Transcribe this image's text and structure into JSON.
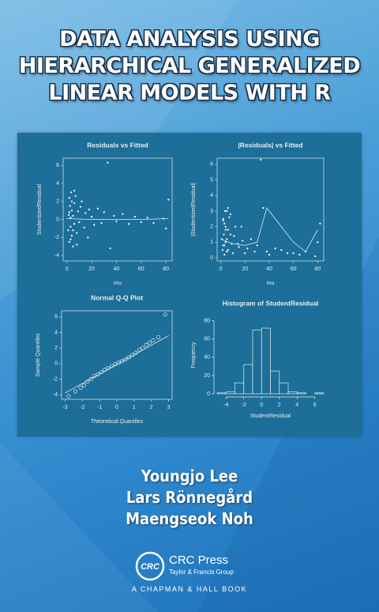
{
  "title_lines": [
    "DATA ANALYSIS USING",
    "HIERARCHICAL GENERALIZED",
    "LINEAR MODELS WITH R"
  ],
  "chart_data": [
    {
      "type": "scatter",
      "title": "Residuals vs Fitted",
      "x_label": "mu",
      "y_label": "StudentizedResidual",
      "marker": "dot",
      "color": "#e6eef4",
      "line_color": "#c9dbe6",
      "xlim": [
        -3,
        85
      ],
      "xticks": [
        0,
        20,
        40,
        60,
        80
      ],
      "ylim": [
        -4.6,
        6.8
      ],
      "yticks": [
        -4,
        -2,
        0,
        2,
        4,
        6
      ],
      "x": [
        1,
        1.5,
        2,
        2,
        2.5,
        3,
        3,
        3.5,
        4,
        4,
        5,
        5,
        6,
        6,
        7,
        8,
        9,
        10,
        11,
        12,
        14,
        15,
        17,
        18,
        20,
        22,
        25,
        28,
        30,
        33,
        35,
        38,
        40,
        45,
        50,
        55,
        60,
        65,
        70,
        78,
        80,
        82,
        3,
        4,
        5,
        2,
        6,
        8
      ],
      "y": [
        -1.2,
        0.5,
        2.4,
        -2.5,
        1.5,
        -0.8,
        0.2,
        3,
        -1.8,
        1,
        0.4,
        -3,
        1.8,
        -0.5,
        2.6,
        -1.5,
        0.9,
        -0.3,
        1.4,
        2,
        -0.9,
        0.7,
        -2,
        1.1,
        0.3,
        -0.6,
        1.2,
        -0.4,
        0.8,
        6.3,
        -3.2,
        0.4,
        -0.2,
        0.6,
        -0.5,
        0.3,
        -0.3,
        0.2,
        -0.4,
        0.1,
        -1,
        2.2,
        -2.2,
        2,
        -1.2,
        0.8,
        3.2,
        -2.8
      ],
      "fit": {
        "x": [
          0,
          20,
          40,
          60,
          82
        ],
        "y": [
          0.1,
          0,
          0,
          0,
          0.1
        ]
      }
    },
    {
      "type": "scatter",
      "title": "|Residuals| vs Fitted",
      "x_label": "mu",
      "y_label": "|StudentizedResidual|",
      "marker": "dot",
      "color": "#e6eef4",
      "line_color": "#c9dbe6",
      "xlim": [
        -3,
        85
      ],
      "xticks": [
        0,
        20,
        40,
        60,
        80
      ],
      "ylim": [
        -0.2,
        6.4
      ],
      "yticks": [
        0,
        1,
        2,
        3,
        4,
        5,
        6
      ],
      "x": [
        1,
        1.5,
        2,
        2,
        2.5,
        3,
        3,
        3.5,
        4,
        4,
        5,
        5,
        6,
        6,
        7,
        8,
        9,
        10,
        11,
        12,
        14,
        15,
        17,
        18,
        20,
        22,
        25,
        28,
        30,
        33,
        35,
        38,
        40,
        45,
        50,
        55,
        60,
        65,
        70,
        78,
        80,
        82,
        3,
        4,
        5,
        2,
        6,
        8
      ],
      "y": [
        1.2,
        0.5,
        2.4,
        2.5,
        1.5,
        0.8,
        0.2,
        3,
        1.8,
        1,
        0.4,
        3,
        1.8,
        0.5,
        2.6,
        1.5,
        0.9,
        0.3,
        1.4,
        2,
        0.9,
        0.7,
        2,
        1.1,
        0.3,
        0.6,
        1.2,
        0.4,
        0.8,
        6.3,
        3.2,
        0.4,
        0.2,
        0.6,
        0.5,
        0.3,
        0.3,
        0.2,
        0.4,
        0.1,
        1,
        2.2,
        2.2,
        2,
        1.2,
        0.8,
        3.2,
        2.8
      ],
      "fit": {
        "x": [
          0,
          10,
          20,
          30,
          38,
          50,
          60,
          70,
          80
        ],
        "y": [
          1.2,
          0.9,
          0.8,
          1.0,
          3.2,
          2.0,
          1.0,
          0.4,
          1.8
        ]
      }
    },
    {
      "type": "scatter",
      "title": "Normal Q-Q Plot",
      "x_label": "Theoretical Quantiles",
      "y_label": "Sample Quantiles",
      "marker": "circle",
      "color": "#e6eef4",
      "line_color": "#c9dbe6",
      "xlim": [
        -3.2,
        3.2
      ],
      "xticks": [
        -3,
        -2,
        -1,
        0,
        1,
        2,
        3
      ],
      "ylim": [
        -4.6,
        6.8
      ],
      "yticks": [
        -4,
        -2,
        0,
        2,
        4,
        6
      ],
      "x": [
        -2.8,
        -2.4,
        -2.1,
        -1.9,
        -1.7,
        -1.5,
        -1.3,
        -1.1,
        -0.9,
        -0.7,
        -0.5,
        -0.3,
        -0.1,
        0.1,
        0.3,
        0.5,
        0.7,
        0.9,
        1.1,
        1.3,
        1.5,
        1.7,
        1.9,
        2.1,
        2.4,
        2.8
      ],
      "y": [
        -4.2,
        -3.6,
        -3.1,
        -2.8,
        -2.3,
        -2,
        -1.6,
        -1.4,
        -1.1,
        -0.8,
        -0.6,
        -0.35,
        -0.1,
        0.1,
        0.3,
        0.55,
        0.8,
        1.1,
        1.4,
        1.8,
        2,
        2.4,
        2.7,
        3,
        3.4,
        6.3
      ],
      "fit": {
        "x": [
          -3,
          3
        ],
        "y": [
          -3.8,
          3.6
        ]
      }
    },
    {
      "type": "histogram",
      "title": "Histogram of StudentResidual",
      "x_label": "StudentResidual",
      "y_label": "Frequency",
      "color": "#1d6e98",
      "line_color": "#e6eef4",
      "xlim": [
        -5,
        7
      ],
      "xticks": [
        -4,
        -2,
        0,
        2,
        4,
        6
      ],
      "ylim": [
        0,
        85
      ],
      "yticks": [
        0,
        20,
        40,
        60,
        80
      ],
      "bins": [
        -5,
        -4,
        -3,
        -2,
        -1,
        0,
        1,
        2,
        3,
        4,
        5,
        6,
        7
      ],
      "values": [
        1,
        2,
        12,
        32,
        70,
        72,
        25,
        12,
        2,
        1,
        0,
        1
      ]
    }
  ],
  "authors": [
    "Youngjo Lee",
    "Lars Rönnegård",
    "Maengseok Noh"
  ],
  "publisher": {
    "logo": "CRC",
    "name": "CRC Press",
    "group": "Taylor & Francis Group",
    "imprint": "A CHAPMAN & HALL BOOK"
  }
}
